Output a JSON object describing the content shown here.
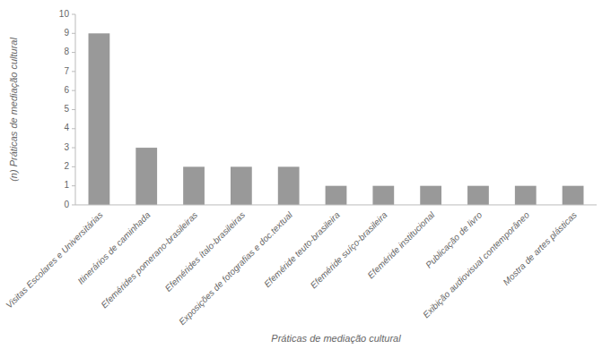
{
  "chart_data": {
    "type": "bar",
    "categories": [
      "Visitas Escolares e Universitárias",
      "Itinerários de caminhada",
      "Efemérides pomerano-brasileiras",
      "Efemérides ítalo-brasileiras",
      "Exposições de fotografias e doc.textual",
      "Efeméride teuto-brasileira",
      "Efeméride suíço-brasileira",
      "Efeméride institucional",
      "Publicação de livro",
      "Exibição audiovisual contemporâneo",
      "Mostra de artes plásticas"
    ],
    "values": [
      9,
      3,
      2,
      2,
      2,
      1,
      1,
      1,
      1,
      1,
      1
    ],
    "color": "#999999",
    "ylabel": "(n) Práticas de mediação cultural",
    "xlabel": "Práticas de mediação cultural",
    "ylim": [
      0,
      10
    ],
    "yticks": [
      0,
      1,
      2,
      3,
      4,
      5,
      6,
      7,
      8,
      9,
      10
    ],
    "grid": false
  }
}
